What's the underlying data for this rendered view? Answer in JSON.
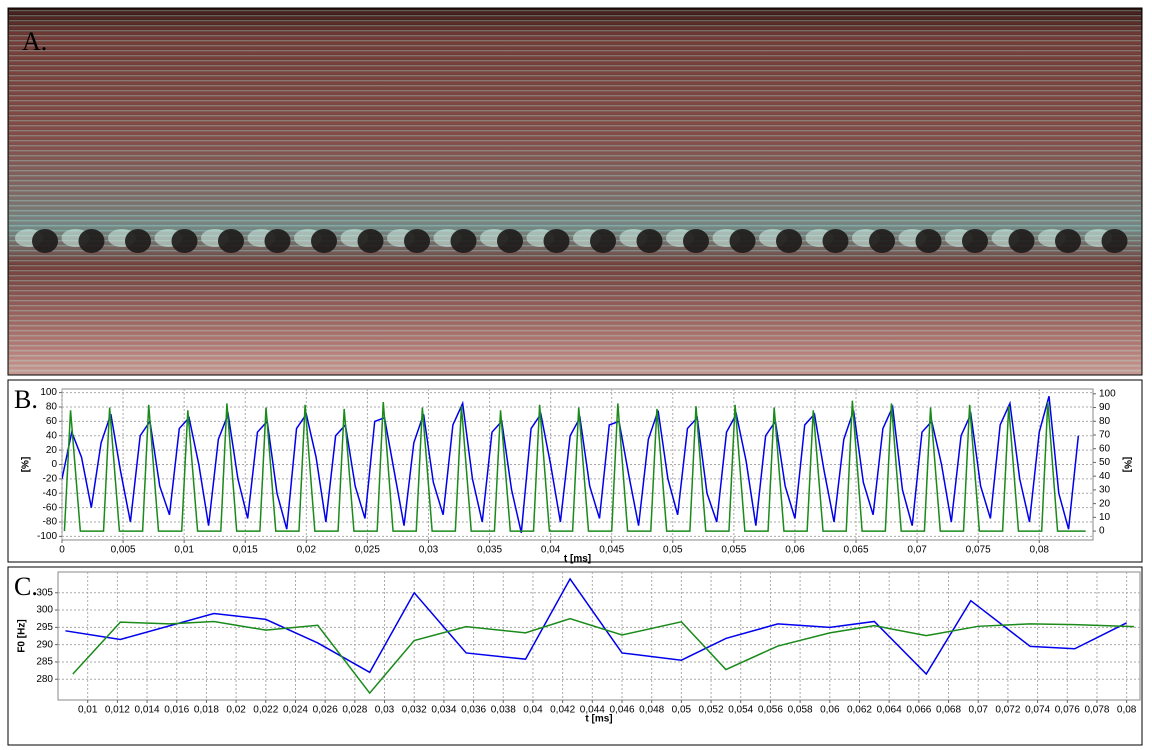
{
  "image_panel": {
    "label": "A."
  },
  "chart_data": [
    {
      "type": "line",
      "label": "B.",
      "x_label": "t [ms]",
      "y_label": "[%]",
      "y2_label": "[%]",
      "xlim": [
        0,
        0.0844
      ],
      "ylim": [
        -105,
        105
      ],
      "y2lim": [
        -6.5,
        103.5
      ],
      "grid": true,
      "xticks": [
        0,
        {
          "value": 0.005,
          "label": "0,005"
        },
        {
          "value": 0.01,
          "label": "0,01"
        },
        {
          "value": 0.015,
          "label": "0,015"
        },
        {
          "value": 0.02,
          "label": "0,02"
        },
        {
          "value": 0.025,
          "label": "0,025"
        },
        {
          "value": 0.03,
          "label": "0,03"
        },
        {
          "value": 0.035,
          "label": "0,035"
        },
        {
          "value": 0.04,
          "label": "0,04"
        },
        {
          "value": 0.045,
          "label": "0,045"
        },
        {
          "value": 0.05,
          "label": "0,05"
        },
        {
          "value": 0.055,
          "label": "0,055"
        },
        {
          "value": 0.06,
          "label": "0,06"
        },
        {
          "value": 0.065,
          "label": "0,065"
        },
        {
          "value": 0.07,
          "label": "0,07"
        },
        {
          "value": 0.075,
          "label": "0,075"
        },
        {
          "value": 0.08,
          "label": "0,08"
        }
      ],
      "yticks": [
        -100,
        -80,
        -60,
        -40,
        -20,
        0,
        20,
        40,
        60,
        80,
        100
      ],
      "y2ticks": [
        0,
        10,
        20,
        30,
        40,
        50,
        60,
        70,
        80,
        90,
        100
      ],
      "series": [
        {
          "color": "#0000ee",
          "x": [
            0,
            0.0008,
            0.0016,
            0.0024,
            0.0032,
            0.004,
            0.0048,
            0.0056,
            0.0064,
            0.0072,
            0.008,
            0.0088,
            0.0096,
            0.0104,
            0.0112,
            0.012,
            0.0128,
            0.0136,
            0.0144,
            0.0152,
            0.016,
            0.0168,
            0.0176,
            0.0184,
            0.0192,
            0.02,
            0.0208,
            0.0216,
            0.0224,
            0.0232,
            0.024,
            0.0248,
            0.0256,
            0.0264,
            0.0272,
            0.028,
            0.0288,
            0.0296,
            0.0304,
            0.0312,
            0.032,
            0.0328,
            0.0336,
            0.0344,
            0.0352,
            0.036,
            0.0368,
            0.0376,
            0.0384,
            0.0392,
            0.04,
            0.0408,
            0.0416,
            0.0424,
            0.0432,
            0.044,
            0.0448,
            0.0456,
            0.0464,
            0.0472,
            0.048,
            0.0488,
            0.0496,
            0.0504,
            0.0512,
            0.052,
            0.0528,
            0.0536,
            0.0544,
            0.0552,
            0.056,
            0.0568,
            0.0576,
            0.0584,
            0.0592,
            0.06,
            0.0608,
            0.0616,
            0.0624,
            0.0632,
            0.064,
            0.0648,
            0.0656,
            0.0664,
            0.0672,
            0.068,
            0.0688,
            0.0696,
            0.0704,
            0.0712,
            0.072,
            0.0728,
            0.0736,
            0.0744,
            0.0752,
            0.076,
            0.0768,
            0.0776,
            0.0784,
            0.0792,
            0.08,
            0.0808,
            0.0816,
            0.0824,
            0.0832
          ],
          "values": [
            -20,
            45,
            10,
            -60,
            30,
            70,
            -10,
            -80,
            40,
            60,
            -30,
            -70,
            50,
            65,
            0,
            -85,
            35,
            70,
            -20,
            -75,
            45,
            60,
            -40,
            -90,
            50,
            70,
            10,
            -80,
            40,
            55,
            -30,
            -75,
            60,
            65,
            -10,
            -85,
            30,
            70,
            -25,
            -70,
            55,
            85,
            -20,
            -80,
            45,
            60,
            -35,
            -95,
            50,
            70,
            0,
            -80,
            40,
            65,
            -30,
            -75,
            55,
            60,
            -15,
            -85,
            35,
            75,
            -20,
            -70,
            50,
            65,
            -40,
            -80,
            45,
            70,
            5,
            -85,
            40,
            60,
            -30,
            -75,
            55,
            70,
            -10,
            -80,
            35,
            75,
            -25,
            -70,
            50,
            80,
            -35,
            -85,
            45,
            60,
            0,
            -80,
            40,
            70,
            -30,
            -75,
            55,
            85,
            -20,
            -80,
            45,
            95,
            -40,
            -90,
            40
          ]
        },
        {
          "color": "#1a8a1a",
          "axis": "y2",
          "x": [
            0.0002,
            0.0007,
            0.0015,
            0.0034,
            0.0039,
            0.0047,
            0.0066,
            0.0071,
            0.0079,
            0.0098,
            0.0103,
            0.0111,
            0.013,
            0.0135,
            0.0143,
            0.0162,
            0.0167,
            0.0175,
            0.0194,
            0.0199,
            0.0207,
            0.0226,
            0.0231,
            0.0239,
            0.0258,
            0.0263,
            0.0271,
            0.029,
            0.0295,
            0.0303,
            0.0322,
            0.0327,
            0.0335,
            0.0354,
            0.0359,
            0.0367,
            0.0386,
            0.0391,
            0.0399,
            0.0418,
            0.0423,
            0.0431,
            0.045,
            0.0455,
            0.0463,
            0.0482,
            0.0487,
            0.0495,
            0.0514,
            0.0519,
            0.0527,
            0.0546,
            0.0551,
            0.0559,
            0.0578,
            0.0583,
            0.0591,
            0.061,
            0.0615,
            0.0623,
            0.0642,
            0.0647,
            0.0655,
            0.0674,
            0.0679,
            0.0687,
            0.0706,
            0.0711,
            0.0719,
            0.0738,
            0.0743,
            0.0751,
            0.077,
            0.0775,
            0.0783,
            0.0802,
            0.0807,
            0.0815,
            0.0838
          ],
          "values": [
            0,
            88,
            0,
            0,
            90,
            0,
            0,
            92,
            0,
            0,
            88,
            0,
            0,
            93,
            0,
            0,
            90,
            0,
            0,
            92,
            0,
            0,
            89,
            0,
            0,
            94,
            0,
            0,
            90,
            0,
            0,
            91,
            0,
            0,
            88,
            0,
            0,
            92,
            0,
            0,
            90,
            0,
            0,
            93,
            0,
            0,
            89,
            0,
            0,
            91,
            0,
            0,
            92,
            0,
            0,
            90,
            0,
            0,
            88,
            0,
            0,
            95,
            0,
            0,
            93,
            0,
            0,
            90,
            0,
            0,
            92,
            0,
            0,
            91,
            0,
            0,
            94,
            0,
            0
          ]
        }
      ]
    },
    {
      "type": "line",
      "label": "C.",
      "x_label": "t [ms]",
      "y_label": "F0 [Hz]",
      "xlim": [
        0.008,
        0.0809
      ],
      "ylim": [
        274,
        311
      ],
      "grid": true,
      "xticks": [
        {
          "value": 0.01,
          "label": "0,01"
        },
        {
          "value": 0.012,
          "label": "0,012"
        },
        {
          "value": 0.014,
          "label": "0,014"
        },
        {
          "value": 0.016,
          "label": "0,016"
        },
        {
          "value": 0.018,
          "label": "0,018"
        },
        {
          "value": 0.02,
          "label": "0,02"
        },
        {
          "value": 0.022,
          "label": "0,022"
        },
        {
          "value": 0.024,
          "label": "0,024"
        },
        {
          "value": 0.026,
          "label": "0,026"
        },
        {
          "value": 0.028,
          "label": "0,028"
        },
        {
          "value": 0.03,
          "label": "0,03"
        },
        {
          "value": 0.032,
          "label": "0,032"
        },
        {
          "value": 0.034,
          "label": "0,034"
        },
        {
          "value": 0.036,
          "label": "0,036"
        },
        {
          "value": 0.038,
          "label": "0,038"
        },
        {
          "value": 0.04,
          "label": "0,04"
        },
        {
          "value": 0.042,
          "label": "0,042"
        },
        {
          "value": 0.044,
          "label": "0,044"
        },
        {
          "value": 0.046,
          "label": "0,046"
        },
        {
          "value": 0.048,
          "label": "0,048"
        },
        {
          "value": 0.05,
          "label": "0,05"
        },
        {
          "value": 0.052,
          "label": "0,052"
        },
        {
          "value": 0.054,
          "label": "0,054"
        },
        {
          "value": 0.056,
          "label": "0,056"
        },
        {
          "value": 0.058,
          "label": "0,058"
        },
        {
          "value": 0.06,
          "label": "0,06"
        },
        {
          "value": 0.062,
          "label": "0,062"
        },
        {
          "value": 0.064,
          "label": "0,064"
        },
        {
          "value": 0.066,
          "label": "0,066"
        },
        {
          "value": 0.068,
          "label": "0,068"
        },
        {
          "value": 0.07,
          "label": "0,07"
        },
        {
          "value": 0.072,
          "label": "0,072"
        },
        {
          "value": 0.074,
          "label": "0,074"
        },
        {
          "value": 0.076,
          "label": "0,076"
        },
        {
          "value": 0.078,
          "label": "0,078"
        },
        {
          "value": 0.08,
          "label": "0,08"
        }
      ],
      "yticks": [
        280,
        285,
        290,
        295,
        300,
        305
      ],
      "series": [
        {
          "color": "#0000ee",
          "x": [
            0.0085,
            0.0122,
            0.0185,
            0.022,
            0.0255,
            0.029,
            0.032,
            0.0355,
            0.0395,
            0.0425,
            0.046,
            0.05,
            0.053,
            0.0565,
            0.06,
            0.063,
            0.0665,
            0.0695,
            0.0735,
            0.0765,
            0.08
          ],
          "values": [
            294,
            291.5,
            299,
            297.3,
            290.5,
            282,
            305,
            287.6,
            285.8,
            309,
            287.6,
            285.5,
            291.8,
            296,
            295,
            296.7,
            281.5,
            302.7,
            289.5,
            288.8,
            296.3
          ]
        },
        {
          "color": "#1a8a1a",
          "x": [
            0.009,
            0.0122,
            0.0155,
            0.0185,
            0.022,
            0.0255,
            0.029,
            0.032,
            0.0355,
            0.0395,
            0.0425,
            0.046,
            0.05,
            0.053,
            0.0565,
            0.06,
            0.063,
            0.0665,
            0.07,
            0.0735,
            0.0765,
            0.0805
          ],
          "values": [
            281.5,
            296.5,
            296,
            296.7,
            294.2,
            295.6,
            276,
            291.2,
            295.2,
            293.4,
            297.5,
            292.8,
            296.6,
            282.8,
            289.6,
            293.4,
            295.5,
            292.6,
            295.3,
            296,
            295.8,
            295.2
          ]
        }
      ]
    }
  ]
}
